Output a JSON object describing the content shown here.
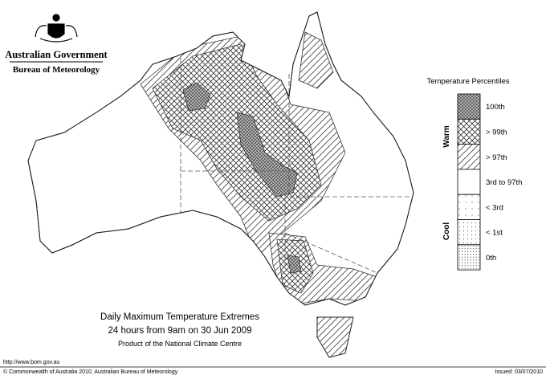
{
  "header": {
    "line1": "Australian Government",
    "line2": "Bureau of Meteorology"
  },
  "legend": {
    "title": "Temperature Percentiles",
    "groups": [
      "Warm",
      "Cool"
    ],
    "items": [
      "100th",
      "> 99th",
      "> 97th",
      "3rd to 97th",
      "< 3rd",
      "< 1st",
      "0th"
    ]
  },
  "caption": {
    "title": "Daily Maximum Temperature Extremes",
    "subtitle": "24 hours from 9am on 30 Jun 2009",
    "credit": "Product of the National Climate Centre"
  },
  "footer": {
    "url": "http://www.bom.gov.au",
    "copyright": "© Commonwealth of Australia 2010, Australian Bureau of Meteorology",
    "issued": "Issued: 03/07/2010"
  }
}
